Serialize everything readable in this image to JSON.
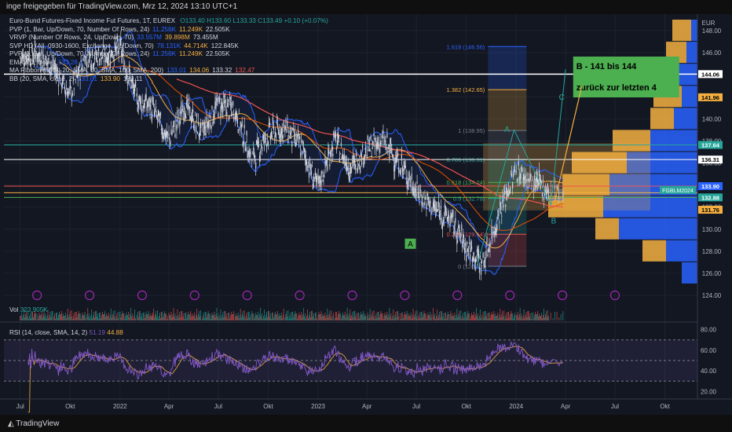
{
  "header": {
    "shared_by": "inge freigegeben für TradingView.com, Mrz 12, 2024 13:10 UTC+1"
  },
  "legend": {
    "title": "Euro-Bund Futures-Fixed Income Fut Futures, 1T, EUREX",
    "ohlc": "O133.40 H133.60 L133.33 C133.49 +0.10 (+0.07%)",
    "rows": [
      {
        "name": "PVP (1, Bar, Up/Down, 70, Number Of Rows, 24)",
        "v1": "11.256K",
        "v2": "11.249K",
        "v3": "22.505K"
      },
      {
        "name": "VRVP (Number Of Rows, 24, Up/Down, 70)",
        "v1": "33.557M",
        "v2": "39.898M",
        "v3": "73.455M"
      },
      {
        "name": "SVP HD (All, 0930-1600, Exchange, Up/Down, 70)",
        "v1": "78.131K",
        "v2": "44.714K",
        "v3": "122.845K"
      },
      {
        "name": "PVP (1, Bar, Up/Down, 70, Number Of Rows, 24)",
        "v1": "11.256K",
        "v2": "11.249K",
        "v3": "22.505K"
      },
      {
        "name": "EMA (21, close)",
        "v1": "133.28",
        "v2": "",
        "v3": ""
      },
      {
        "name": "MA Ribbon (SMA, 20, SMA, 50, SMA, 100, SMA, 200)",
        "v1": "133.01",
        "v2": "134.06",
        "v3": "133.32",
        "v4": "132.47"
      },
      {
        "name": "BB (20, SMA, close, 2)",
        "v1": "133.01",
        "v2": "133.90",
        "v3": "132.11"
      }
    ]
  },
  "volume": {
    "label": "Vol",
    "value": "323.905K"
  },
  "rsi": {
    "label": "RSI (14, close, SMA, 14, 2)",
    "value": "51.19",
    "ma": "44.88",
    "axis_ticks": [
      "80.00",
      "60.00",
      "40.00",
      "20.00"
    ]
  },
  "currency": "EUR",
  "price_axis_ticks": [
    "148.00",
    "146.00",
    "144.00",
    "142.00",
    "140.00",
    "138.00",
    "136.00",
    "134.00",
    "132.00",
    "130.00",
    "128.00",
    "126.00",
    "124.00"
  ],
  "price_tags": [
    {
      "label": "144.06",
      "price": 144.06,
      "bg": "#ffffff",
      "fg": "#000000"
    },
    {
      "label": "141.96",
      "price": 141.96,
      "bg": "#f5b041",
      "fg": "#000000"
    },
    {
      "label": "137.64",
      "price": 137.64,
      "bg": "#26a69a",
      "fg": "#ffffff"
    },
    {
      "label": "136.31",
      "price": 136.31,
      "bg": "#ffffff",
      "fg": "#000000"
    },
    {
      "label": "133.90",
      "price": 133.9,
      "bg": "#2962ff",
      "fg": "#ffffff"
    },
    {
      "label": "132.88",
      "price": 132.88,
      "bg": "#26a69a",
      "fg": "#ffffff"
    },
    {
      "label": "131.76",
      "price": 131.76,
      "bg": "#f5b041",
      "fg": "#000000"
    }
  ],
  "symbol_tag": "FGBLM2024",
  "time_axis": [
    "Jul",
    "Okt",
    "2022",
    "Apr",
    "Jul",
    "Okt",
    "2023",
    "Apr",
    "Jul",
    "Okt",
    "2024",
    "Apr",
    "Jul",
    "Okt"
  ],
  "fib": [
    {
      "label": "1.618 (146.56)",
      "price": 146.56
    },
    {
      "label": "1.382 (142.65)",
      "price": 142.65
    },
    {
      "label": "1 (138.95)",
      "price": 138.95
    },
    {
      "label": "0.786 (136.31)",
      "price": 136.31
    },
    {
      "label": "0.618 (134.24)",
      "price": 134.24
    },
    {
      "label": "0.5 (132.79)",
      "price": 132.79
    },
    {
      "label": "0.236 (129.54)",
      "price": 129.54
    },
    {
      "label": "0 (126.63)",
      "price": 126.63
    }
  ],
  "annotation": {
    "line1": "B  - 141 bis 144",
    "line2": "zurück zur letzten 4",
    "color": "#4caf50"
  },
  "wave_labels": [
    {
      "text": "A",
      "kind": "box"
    },
    {
      "text": "A",
      "kind": "plain"
    },
    {
      "text": "B",
      "kind": "plain"
    },
    {
      "text": "C",
      "kind": "plain"
    }
  ],
  "horizontal_levels": [
    144.06,
    137.64,
    136.31,
    133.9,
    133.3,
    132.88
  ],
  "colors": {
    "up": "#2962ff",
    "down": "#f5b041",
    "green": "#4caf50",
    "teal": "#26a69a",
    "bb": "#2962ff",
    "ema": "#f5b041",
    "red": "#ef5350",
    "rsi": "#7e57c2"
  },
  "footer": {
    "brand": "TradingView"
  },
  "chart_data": {
    "type": "line",
    "title": "Euro-Bund Futures-Fixed Income Fut Futures, 1T, EUREX",
    "xlabel": "",
    "ylabel": "EUR",
    "ylim": [
      123.5,
      149.5
    ],
    "x": [
      "2021-07",
      "2021-08",
      "2021-09",
      "2021-10",
      "2021-11",
      "2021-12",
      "2022-01",
      "2022-02",
      "2022-03",
      "2022-04",
      "2022-05",
      "2022-06",
      "2022-07",
      "2022-08",
      "2022-09",
      "2022-10",
      "2022-11",
      "2022-12",
      "2023-01",
      "2023-02",
      "2023-03",
      "2023-04",
      "2023-05",
      "2023-06",
      "2023-07",
      "2023-08",
      "2023-09",
      "2023-10",
      "2023-11",
      "2023-12",
      "2024-01",
      "2024-02",
      "2024-03"
    ],
    "series": [
      {
        "values": [
          145.6,
          145.9,
          144.6,
          142.2,
          145.8,
          145.6,
          146.4,
          141.8,
          141.0,
          138.1,
          141.2,
          138.7,
          141.3,
          140.8,
          136.4,
          138.6,
          139.1,
          137.5,
          133.8,
          138.0,
          135.4,
          137.2,
          138.0,
          135.9,
          133.5,
          131.9,
          131.0,
          128.4,
          126.9,
          131.5,
          135.3,
          134.2,
          133.5
        ]
      }
    ]
  }
}
